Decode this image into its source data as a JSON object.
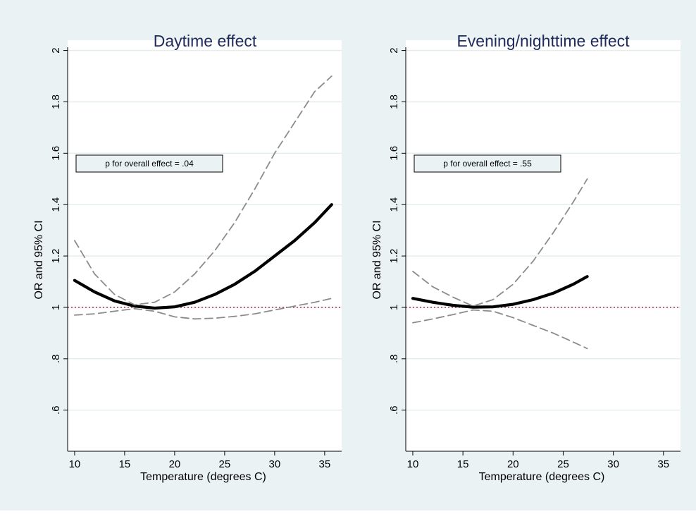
{
  "figure": {
    "background": "#eaf2f3",
    "plot_bg": "#ffffff"
  },
  "colors": {
    "title": "#1e2a5a",
    "estimate": "#000000",
    "ci": "#8c8c8c",
    "reference": "#a0203a",
    "grid": "#e3ecee",
    "note_fill": "#eaf2f3"
  },
  "chart_data": [
    {
      "type": "line",
      "title": "Daytime effect",
      "xlabel": "Temperature (degrees C)",
      "ylabel": "OR and 95% CI",
      "xlim": [
        9.3,
        36.7
      ],
      "ylim": [
        0.44,
        2.04
      ],
      "xticks": [
        10,
        15,
        20,
        25,
        30,
        35
      ],
      "yticks": [
        0.6,
        0.8,
        1,
        1.2,
        1.4,
        1.6,
        1.8,
        2
      ],
      "ytick_labels": [
        ".6",
        ".8",
        "1",
        "1.2",
        "1.4",
        "1.6",
        "1.8",
        "2"
      ],
      "grid": true,
      "legend": false,
      "reference_line": 1,
      "annotation": "p for overall effect = .04",
      "series": [
        {
          "role": "estimate",
          "x": [
            10,
            12,
            14,
            16,
            18,
            20,
            22,
            24,
            26,
            28,
            30,
            32,
            34,
            35.7
          ],
          "y": [
            1.105,
            1.06,
            1.025,
            1.005,
            0.997,
            1.002,
            1.02,
            1.05,
            1.09,
            1.14,
            1.2,
            1.26,
            1.33,
            1.4
          ]
        },
        {
          "role": "upper CI",
          "x": [
            10,
            12,
            14,
            16,
            18,
            20,
            22,
            24,
            26,
            28,
            30,
            32,
            34,
            35.7
          ],
          "y": [
            1.26,
            1.13,
            1.05,
            1.01,
            1.02,
            1.06,
            1.13,
            1.22,
            1.33,
            1.46,
            1.6,
            1.72,
            1.84,
            1.9
          ]
        },
        {
          "role": "lower CI",
          "x": [
            10,
            12,
            14,
            16,
            18,
            20,
            22,
            24,
            26,
            28,
            30,
            32,
            34,
            35.7
          ],
          "y": [
            0.97,
            0.975,
            0.985,
            0.995,
            0.985,
            0.963,
            0.955,
            0.958,
            0.965,
            0.975,
            0.99,
            1.005,
            1.02,
            1.035
          ]
        }
      ]
    },
    {
      "type": "line",
      "title": "Evening/nighttime effect",
      "xlabel": "Temperature (degrees C)",
      "ylabel": "OR and 95% CI",
      "xlim": [
        9.3,
        36.7
      ],
      "ylim": [
        0.44,
        2.04
      ],
      "xticks": [
        10,
        15,
        20,
        25,
        30,
        35
      ],
      "yticks": [
        0.6,
        0.8,
        1,
        1.2,
        1.4,
        1.6,
        1.8,
        2
      ],
      "ytick_labels": [
        ".6",
        ".8",
        "1",
        "1.2",
        "1.4",
        "1.6",
        "1.8",
        "2"
      ],
      "grid": true,
      "legend": false,
      "reference_line": 1,
      "annotation": "p for overall effect = .55",
      "series": [
        {
          "role": "estimate",
          "x": [
            10,
            12,
            14,
            16,
            18,
            20,
            22,
            24,
            26,
            27.4
          ],
          "y": [
            1.035,
            1.02,
            1.008,
            1.001,
            1.002,
            1.012,
            1.03,
            1.055,
            1.09,
            1.12
          ]
        },
        {
          "role": "upper CI",
          "x": [
            10,
            12,
            14,
            16,
            18,
            20,
            22,
            24,
            26,
            27.4
          ],
          "y": [
            1.14,
            1.08,
            1.04,
            1.005,
            1.03,
            1.09,
            1.18,
            1.29,
            1.41,
            1.5
          ]
        },
        {
          "role": "lower CI",
          "x": [
            10,
            12,
            14,
            16,
            18,
            20,
            22,
            24,
            26,
            27.4
          ],
          "y": [
            0.94,
            0.955,
            0.972,
            0.99,
            0.985,
            0.96,
            0.93,
            0.9,
            0.865,
            0.84
          ]
        }
      ]
    }
  ]
}
